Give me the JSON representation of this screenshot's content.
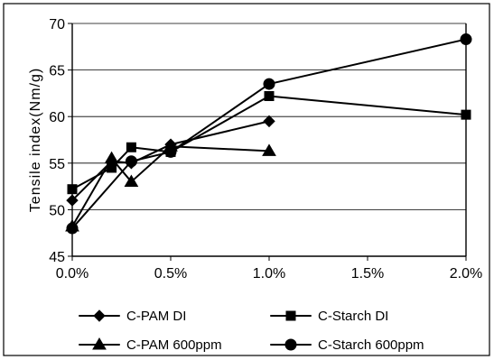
{
  "chart_data": {
    "type": "line",
    "title": "",
    "xlabel": "",
    "ylabel": "Tensile index(Nm/g)",
    "xlim": [
      0,
      2
    ],
    "ylim": [
      45,
      70
    ],
    "x_ticks": [
      0,
      0.5,
      1,
      1.5,
      2
    ],
    "x_tick_labels": [
      "0.0%",
      "0.5%",
      "1.0%",
      "1.5%",
      "2.0%"
    ],
    "y_ticks": [
      45,
      50,
      55,
      60,
      65,
      70
    ],
    "y_tick_labels": [
      "45",
      "50",
      "55",
      "60",
      "65",
      "70"
    ],
    "grid": "horizontal",
    "legend": "bottom",
    "series": [
      {
        "name": "C-PAM DI",
        "marker": "diamond",
        "x": [
          0,
          0.2,
          0.3,
          0.5,
          1.0
        ],
        "y": [
          51.0,
          55.2,
          55.0,
          57.0,
          59.5
        ]
      },
      {
        "name": "C-Starch DI",
        "marker": "square",
        "x": [
          0,
          0.2,
          0.3,
          0.5,
          1.0,
          2.0
        ],
        "y": [
          52.2,
          54.5,
          56.7,
          56.2,
          62.2,
          60.2
        ]
      },
      {
        "name": "C-PAM 600ppm",
        "marker": "triangle",
        "x": [
          0,
          0.2,
          0.3,
          0.5,
          1.0
        ],
        "y": [
          48.2,
          55.5,
          53.0,
          56.8,
          56.3
        ]
      },
      {
        "name": "C-Starch 600ppm",
        "marker": "circle",
        "x": [
          0,
          0.3,
          0.5,
          1.0,
          2.0
        ],
        "y": [
          48.0,
          55.2,
          56.2,
          63.5,
          68.3
        ]
      }
    ]
  }
}
